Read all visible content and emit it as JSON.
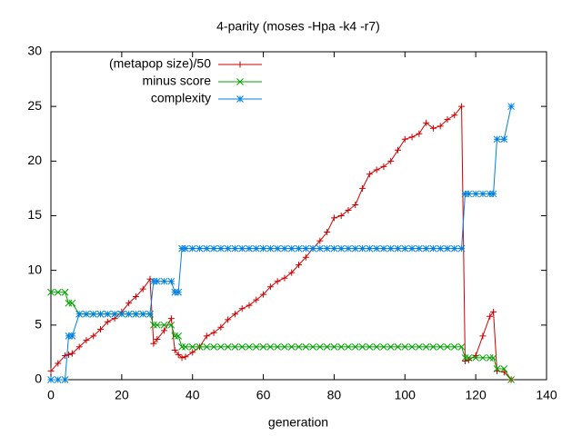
{
  "chart_data": {
    "type": "line",
    "title": "4-parity (moses -Hpa -k4 -r7)",
    "xlabel": "generation",
    "x": [
      0,
      2,
      4,
      5,
      6,
      8,
      10,
      12,
      14,
      16,
      18,
      20,
      22,
      24,
      26,
      28,
      29,
      30,
      32,
      34,
      35,
      36,
      37,
      38,
      40,
      42,
      44,
      46,
      48,
      50,
      52,
      54,
      56,
      58,
      60,
      62,
      64,
      66,
      68,
      70,
      72,
      74,
      76,
      78,
      80,
      82,
      84,
      86,
      88,
      90,
      92,
      94,
      96,
      98,
      100,
      102,
      104,
      106,
      108,
      110,
      112,
      114,
      116,
      117,
      118,
      120,
      122,
      124,
      125,
      126,
      128,
      130
    ],
    "series": [
      {
        "name": "(metapop size)/50",
        "color": "#cc0000",
        "marker": "plus",
        "values": [
          0.8,
          1.5,
          2.2,
          2.3,
          2.4,
          3,
          3.6,
          4,
          4.6,
          5.3,
          5.6,
          6.2,
          7,
          7.6,
          8.3,
          9.2,
          3.3,
          3.7,
          4.5,
          5.6,
          2.7,
          2.3,
          2,
          2.1,
          2.5,
          3,
          4,
          4.3,
          4.8,
          5.5,
          6,
          6.5,
          6.8,
          7.3,
          7.8,
          8.5,
          9,
          9.3,
          9.8,
          10.5,
          11.2,
          12,
          12.7,
          13.5,
          14.8,
          15,
          15.5,
          16,
          17.5,
          18.8,
          19.2,
          19.5,
          20,
          21,
          22,
          22.2,
          22.5,
          23.5,
          23,
          23.2,
          23.8,
          24.2,
          25,
          1.7,
          1.8,
          2.2,
          4,
          5.8,
          6.2,
          0.8,
          0.7,
          0
        ]
      },
      {
        "name": "minus score",
        "color": "#00a000",
        "marker": "cross",
        "values": [
          8,
          8,
          8,
          7,
          7,
          6,
          6,
          6,
          6,
          6,
          6,
          6,
          6,
          6,
          6,
          6,
          5,
          5,
          5,
          5,
          4,
          4,
          3,
          3,
          3,
          3,
          3,
          3,
          3,
          3,
          3,
          3,
          3,
          3,
          3,
          3,
          3,
          3,
          3,
          3,
          3,
          3,
          3,
          3,
          3,
          3,
          3,
          3,
          3,
          3,
          3,
          3,
          3,
          3,
          3,
          3,
          3,
          3,
          3,
          3,
          3,
          3,
          3,
          2,
          2,
          2,
          2,
          2,
          2,
          1,
          1,
          0
        ]
      },
      {
        "name": "complexity",
        "color": "#0080e0",
        "marker": "star",
        "values": [
          0,
          0,
          0,
          4,
          4,
          6,
          6,
          6,
          6,
          6,
          6,
          6,
          6,
          6,
          6,
          6,
          9,
          9,
          9,
          9,
          8,
          8,
          12,
          12,
          12,
          12,
          12,
          12,
          12,
          12,
          12,
          12,
          12,
          12,
          12,
          12,
          12,
          12,
          12,
          12,
          12,
          12,
          12,
          12,
          12,
          12,
          12,
          12,
          12,
          12,
          12,
          12,
          12,
          12,
          12,
          12,
          12,
          12,
          12,
          12,
          12,
          12,
          12,
          17,
          17,
          17,
          17,
          17,
          17,
          22,
          22,
          25
        ]
      }
    ],
    "xlim": [
      0,
      140
    ],
    "ylim": [
      0,
      30
    ],
    "xticks": [
      0,
      20,
      40,
      60,
      80,
      100,
      120,
      140
    ],
    "yticks": [
      0,
      5,
      10,
      15,
      20,
      25,
      30
    ],
    "grid": false,
    "legend": "top-left"
  }
}
